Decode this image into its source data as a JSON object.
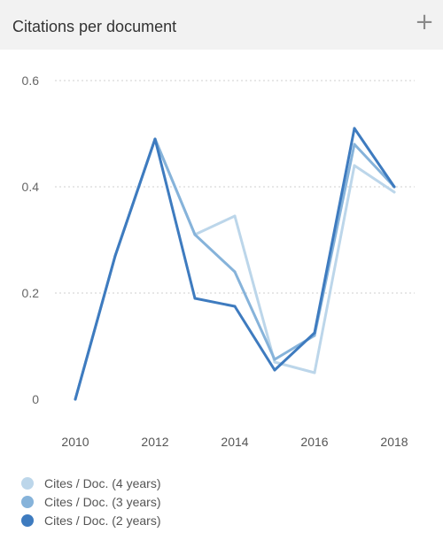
{
  "header": {
    "title": "Citations per document",
    "action_icon": "plus-icon"
  },
  "chart_data": {
    "type": "line",
    "title": "Citations per document",
    "xlabel": "",
    "ylabel": "",
    "x": [
      2010,
      2011,
      2012,
      2013,
      2014,
      2015,
      2016,
      2017,
      2018
    ],
    "xticks": [
      "2010",
      "2012",
      "2014",
      "2016",
      "2018"
    ],
    "yticks": [
      "0",
      "0.2",
      "0.4",
      "0.6"
    ],
    "ylim": [
      0,
      0.6
    ],
    "grid": "horizontal dotted",
    "legend_position": "bottom",
    "series": [
      {
        "name": "Cites / Doc. (4 years)",
        "color": "#bcd6ea",
        "values": [
          0,
          0.27,
          0.49,
          0.31,
          0.345,
          0.07,
          0.05,
          0.44,
          0.39
        ]
      },
      {
        "name": "Cites / Doc. (3 years)",
        "color": "#86b3da",
        "values": [
          0,
          0.27,
          0.49,
          0.31,
          0.24,
          0.075,
          0.12,
          0.48,
          0.4
        ]
      },
      {
        "name": "Cites / Doc. (2 years)",
        "color": "#3e7bbf",
        "values": [
          0,
          0.27,
          0.49,
          0.19,
          0.175,
          0.055,
          0.125,
          0.51,
          0.4
        ]
      }
    ]
  }
}
